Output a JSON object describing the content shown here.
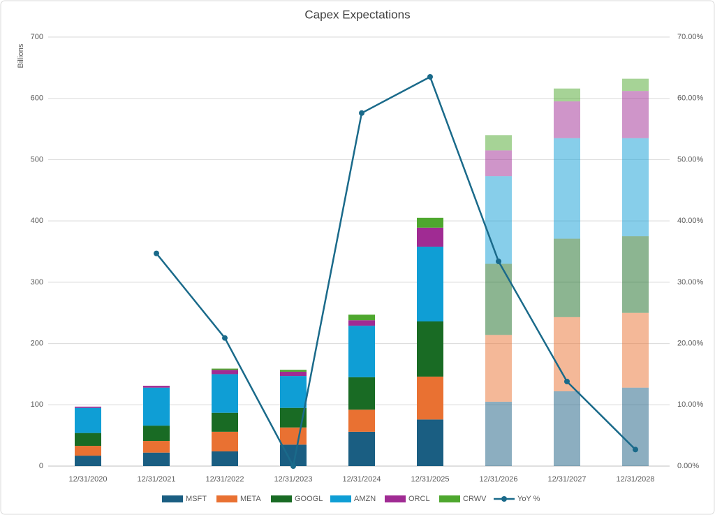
{
  "chart_data": {
    "type": "stacked_bar_line",
    "title": "Capex Expectations",
    "y_label": "Billions",
    "categories": [
      "12/31/2020",
      "12/31/2021",
      "12/31/2022",
      "12/31/2023",
      "12/31/2024",
      "12/31/2025",
      "12/31/2026",
      "12/31/2027",
      "12/31/2028"
    ],
    "series": [
      {
        "name": "MSFT",
        "color": "#1a5e82",
        "values": [
          17,
          22,
          24,
          35,
          56,
          76,
          105,
          122,
          128
        ]
      },
      {
        "name": "META",
        "color": "#e97132",
        "values": [
          16,
          19,
          32,
          28,
          36,
          70,
          109,
          121,
          122
        ]
      },
      {
        "name": "GOOGL",
        "color": "#196b24",
        "values": [
          21,
          25,
          31,
          32,
          53,
          90,
          116,
          128,
          125
        ]
      },
      {
        "name": "AMZN",
        "color": "#0f9ed5",
        "values": [
          41,
          62,
          63,
          52,
          84,
          122,
          143,
          164,
          160
        ]
      },
      {
        "name": "ORCL",
        "color": "#a02b93",
        "values": [
          2,
          3,
          7,
          7,
          9,
          31,
          42,
          60,
          77
        ]
      },
      {
        "name": "CRWV",
        "color": "#4ea72e",
        "values": [
          0,
          0,
          2,
          3,
          9,
          16,
          25,
          21,
          20
        ]
      },
      {
        "name": "YoY %",
        "color": "#1a6a8a",
        "axis": "y2",
        "line": true,
        "values": [
          null,
          34.7,
          20.9,
          0,
          57.6,
          63.5,
          33.4,
          13.8,
          2.7
        ]
      }
    ],
    "ylim": [
      0,
      700
    ],
    "yticks": [
      0,
      100,
      200,
      300,
      400,
      500,
      600,
      700
    ],
    "y2lim": [
      0,
      70
    ],
    "y2ticks": [
      {
        "value": 0,
        "label": "0.00%"
      },
      {
        "value": 10,
        "label": "10.00%"
      },
      {
        "value": 20,
        "label": "20.00%"
      },
      {
        "value": 30,
        "label": "30.00%"
      },
      {
        "value": 40,
        "label": "40.00%"
      },
      {
        "value": 50,
        "label": "50.00%"
      },
      {
        "value": 60,
        "label": "60.00%"
      },
      {
        "value": 70,
        "label": "70.00%"
      }
    ],
    "grid": true,
    "legend": "bottom"
  }
}
